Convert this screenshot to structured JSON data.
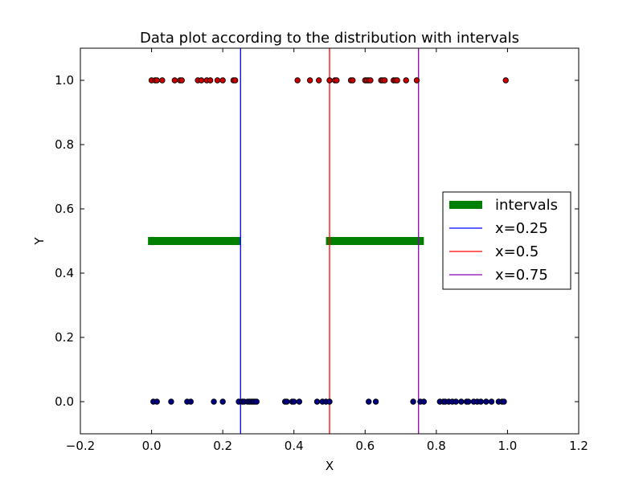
{
  "chart_data": {
    "type": "scatter",
    "title": "Data plot according to the distribution with intervals",
    "xlabel": "X",
    "ylabel": "Y",
    "xlim": [
      -0.2,
      1.2
    ],
    "ylim": [
      -0.1,
      1.1
    ],
    "xticks": [
      -0.2,
      0.0,
      0.2,
      0.4,
      0.6,
      0.8,
      1.0,
      1.2
    ],
    "xtick_labels": [
      "−0.2",
      "0.0",
      "0.2",
      "0.4",
      "0.6",
      "0.8",
      "1.0",
      "1.2"
    ],
    "yticks": [
      0.0,
      0.2,
      0.4,
      0.6,
      0.8,
      1.0
    ],
    "ytick_labels": [
      "0.0",
      "0.2",
      "0.4",
      "0.6",
      "0.8",
      "1.0"
    ],
    "grid": false,
    "legend_position": "right",
    "points_y1": {
      "color": "#cc0000",
      "y": 1.0,
      "x": [
        0.0,
        0.01,
        0.015,
        0.03,
        0.065,
        0.08,
        0.085,
        0.13,
        0.14,
        0.155,
        0.165,
        0.185,
        0.2,
        0.23,
        0.235,
        0.41,
        0.445,
        0.47,
        0.5,
        0.515,
        0.52,
        0.56,
        0.565,
        0.6,
        0.605,
        0.61,
        0.615,
        0.645,
        0.65,
        0.655,
        0.68,
        0.685,
        0.69,
        0.715,
        0.745,
        0.995
      ]
    },
    "points_y0": {
      "color": "#000080",
      "y": 0.0,
      "x": [
        0.005,
        0.015,
        0.055,
        0.1,
        0.11,
        0.175,
        0.2,
        0.245,
        0.255,
        0.26,
        0.27,
        0.275,
        0.28,
        0.285,
        0.29,
        0.295,
        0.375,
        0.38,
        0.395,
        0.4,
        0.415,
        0.465,
        0.48,
        0.49,
        0.5,
        0.61,
        0.63,
        0.735,
        0.755,
        0.765,
        0.81,
        0.82,
        0.825,
        0.835,
        0.845,
        0.855,
        0.87,
        0.885,
        0.89,
        0.905,
        0.915,
        0.925,
        0.94,
        0.955,
        0.975,
        0.985,
        0.99
      ]
    },
    "intervals": {
      "color": "#008000",
      "y": 0.5,
      "segments": [
        [
          -0.01,
          0.25
        ],
        [
          0.49,
          0.765
        ]
      ]
    },
    "vlines": [
      {
        "x": 0.25,
        "color": "#0000ff"
      },
      {
        "x": 0.5,
        "color": "#ff0000"
      },
      {
        "x": 0.75,
        "color": "#8b00b0"
      }
    ],
    "legend": [
      {
        "label": "intervals",
        "color": "#008000",
        "style": "thick"
      },
      {
        "label": "x=0.25",
        "color": "#0000ff",
        "style": "line"
      },
      {
        "label": "x=0.5",
        "color": "#ff0000",
        "style": "line"
      },
      {
        "label": "x=0.75",
        "color": "#8b00b0",
        "style": "line"
      }
    ]
  }
}
